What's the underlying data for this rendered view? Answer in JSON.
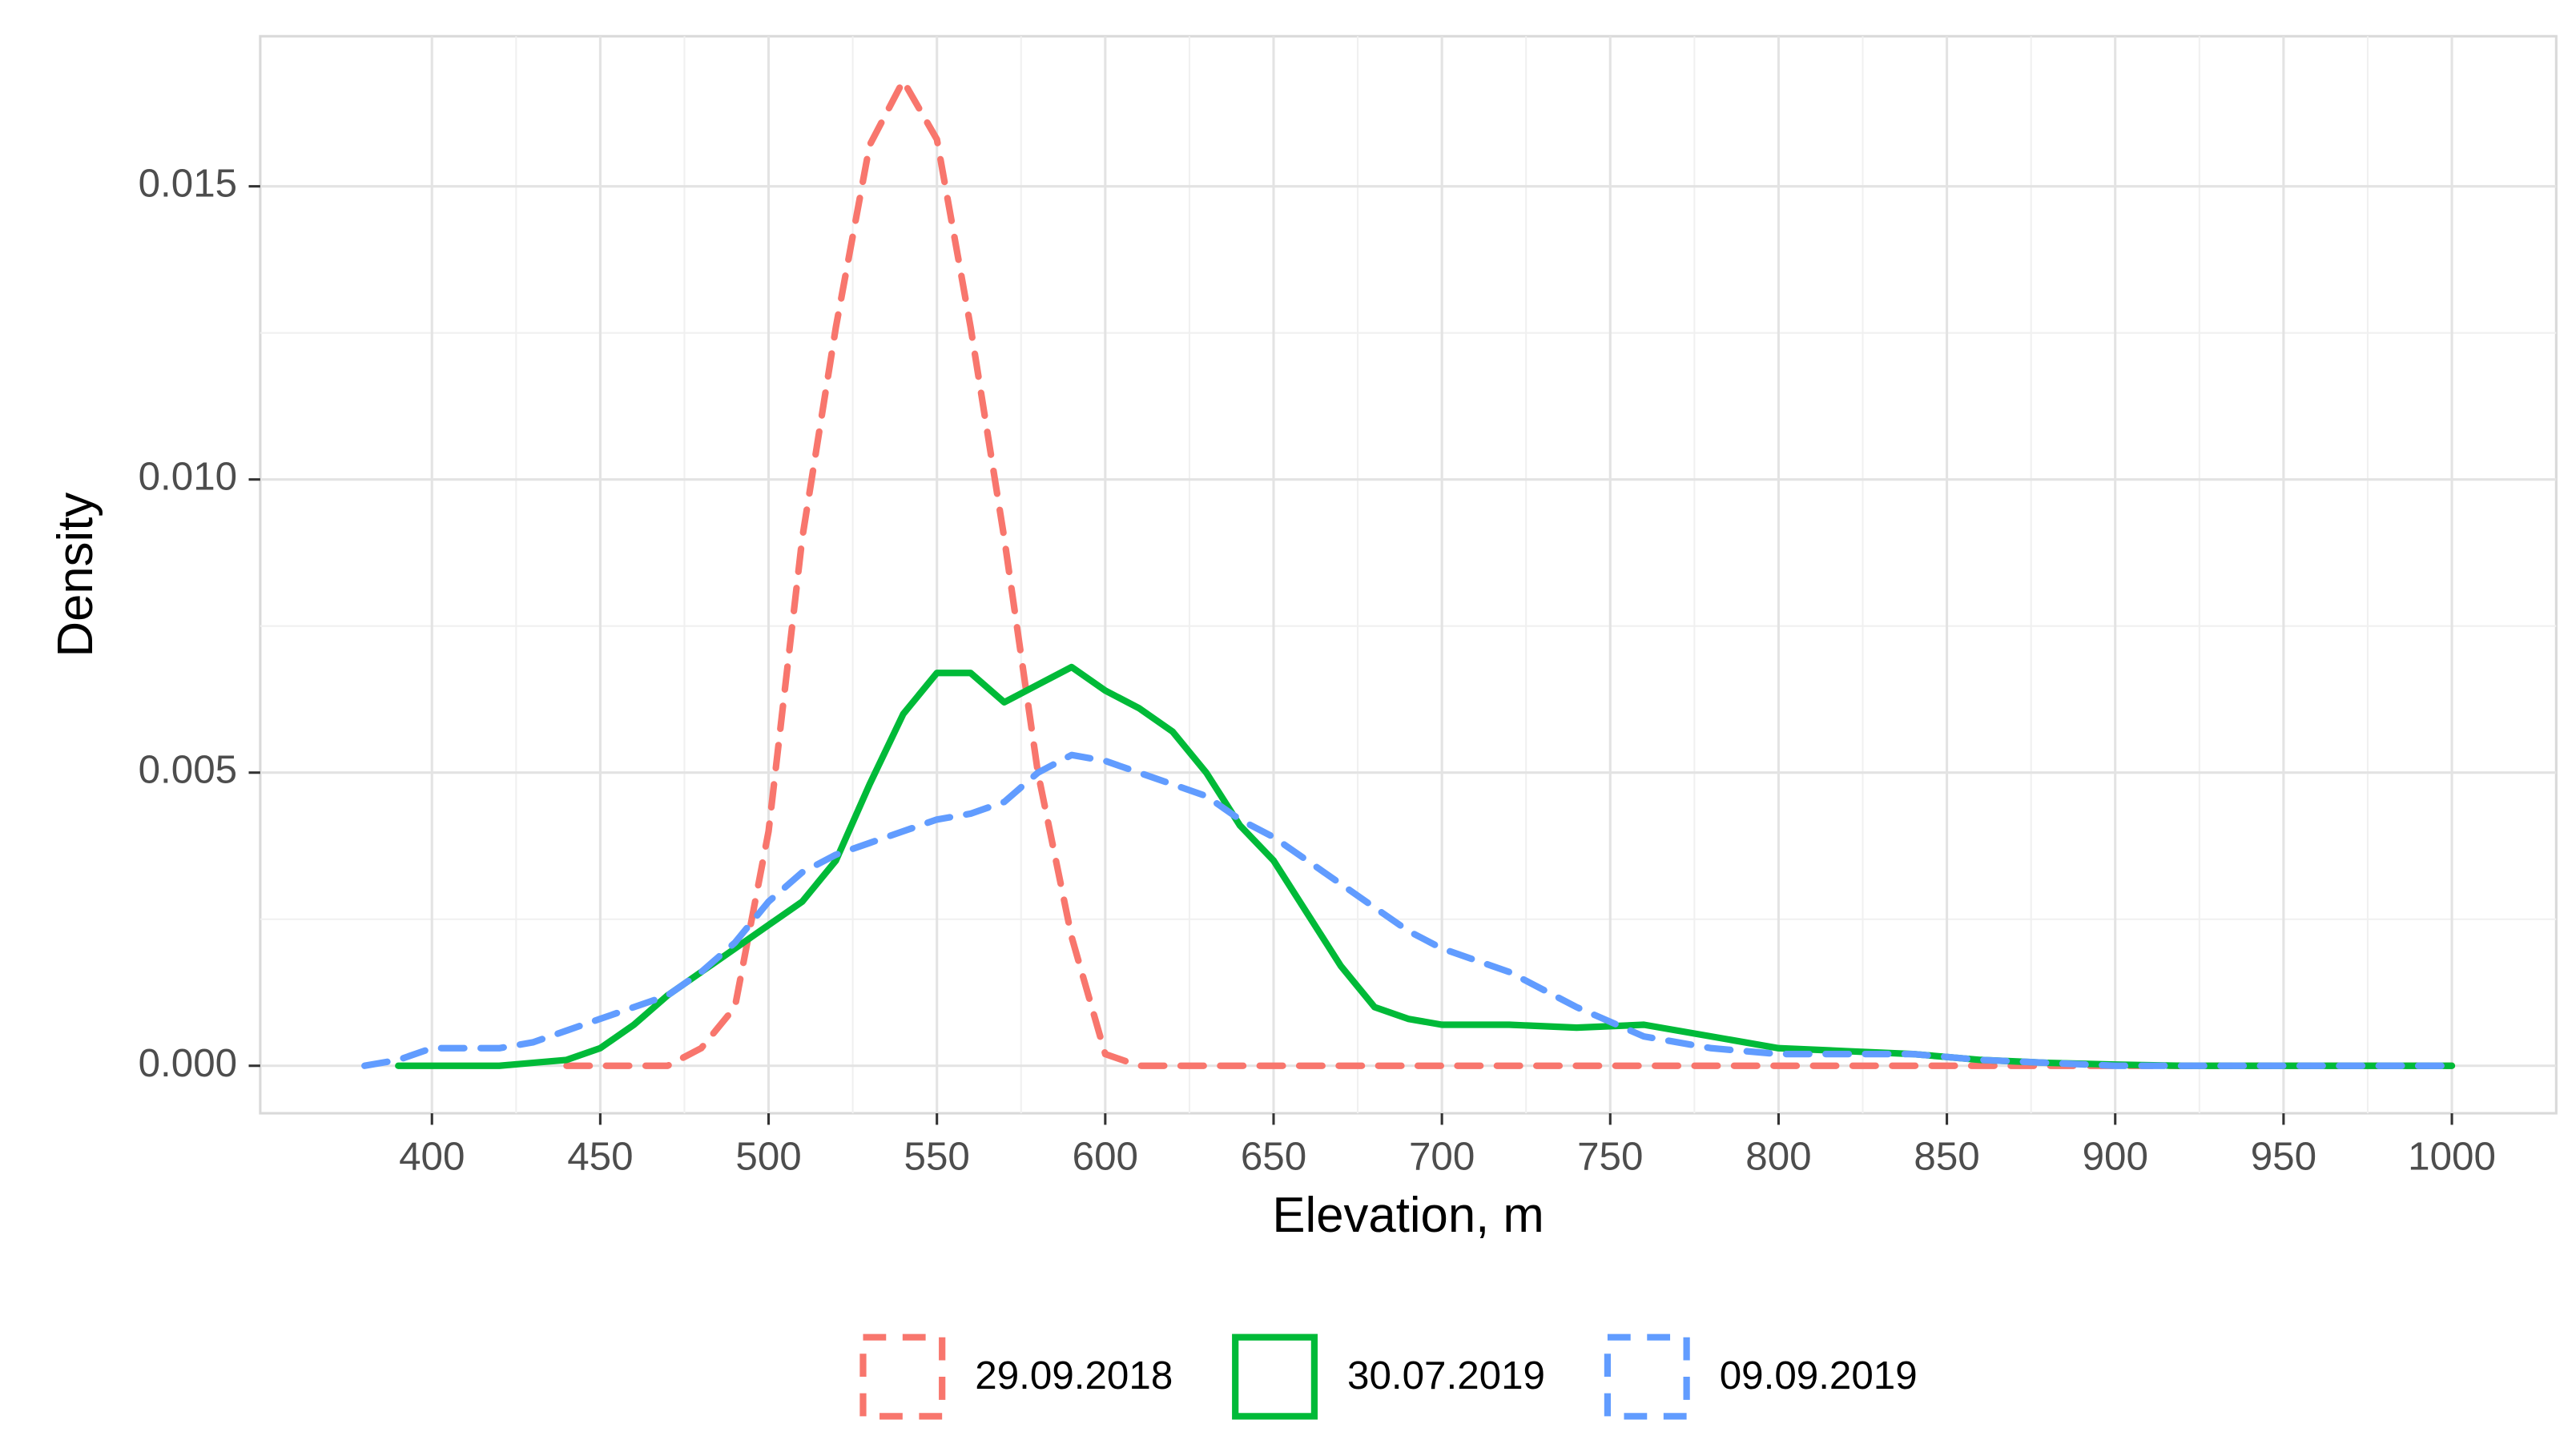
{
  "chart_data": {
    "type": "line",
    "xlabel": "Elevation, m",
    "ylabel": "Density",
    "grid": true,
    "legend": "bottom",
    "xlim": [
      349,
      1031
    ],
    "ylim": [
      -0.00081,
      0.01756
    ],
    "xticks": [
      400,
      450,
      500,
      550,
      600,
      650,
      700,
      750,
      800,
      850,
      900,
      950,
      1000
    ],
    "yticks": [
      {
        "value": 0,
        "label": "0.000"
      },
      {
        "value": 0.005,
        "label": "0.005"
      },
      {
        "value": 0.01,
        "label": "0.010"
      },
      {
        "value": 0.015,
        "label": "0.015"
      }
    ],
    "x": [
      380,
      390,
      400,
      410,
      420,
      430,
      440,
      450,
      460,
      470,
      480,
      490,
      500,
      510,
      520,
      530,
      540,
      550,
      560,
      570,
      580,
      590,
      600,
      610,
      620,
      630,
      640,
      650,
      660,
      670,
      680,
      690,
      700,
      720,
      740,
      760,
      780,
      800,
      820,
      840,
      860,
      880,
      900,
      920,
      940,
      960,
      980,
      1000
    ],
    "series": [
      {
        "name": "29.09.2018",
        "color": "#f8766d",
        "linestyle": "dashed",
        "values": [
          null,
          null,
          null,
          null,
          null,
          null,
          0,
          0,
          0,
          0,
          0.0003,
          0.001,
          0.004,
          0.009,
          0.0126,
          0.0157,
          0.0168,
          0.0158,
          0.0126,
          0.009,
          0.005,
          0.0022,
          0.0002,
          0,
          0,
          0,
          0,
          0,
          0,
          0,
          0,
          0,
          0,
          0,
          0,
          0,
          0,
          0,
          0,
          0,
          0,
          0,
          0,
          0,
          0,
          0,
          0,
          0
        ]
      },
      {
        "name": "30.07.2019",
        "color": "#00ba38",
        "linestyle": "solid",
        "values": [
          null,
          0,
          0,
          0,
          0,
          5e-05,
          0.0001,
          0.0003,
          0.0007,
          0.0012,
          0.0016,
          0.002,
          0.0024,
          0.0028,
          0.0035,
          0.0048,
          0.006,
          0.0067,
          0.0067,
          0.0062,
          0.0065,
          0.0068,
          0.0064,
          0.0061,
          0.0057,
          0.005,
          0.0041,
          0.0035,
          0.0026,
          0.0017,
          0.001,
          0.0008,
          0.0007,
          0.0007,
          0.00065,
          0.0007,
          0.0005,
          0.0003,
          0.00025,
          0.0002,
          0.0001,
          5e-05,
          2e-05,
          0,
          0,
          0,
          0,
          0
        ]
      },
      {
        "name": "09.09.2019",
        "color": "#619cff",
        "linestyle": "dashed",
        "values": [
          0,
          0.0001,
          0.0003,
          0.0003,
          0.0003,
          0.0004,
          0.0006,
          0.0008,
          0.001,
          0.0012,
          0.0016,
          0.0021,
          0.0028,
          0.0033,
          0.0036,
          0.0038,
          0.004,
          0.0042,
          0.0043,
          0.0045,
          0.005,
          0.0053,
          0.0052,
          0.005,
          0.0048,
          0.0046,
          0.0042,
          0.0039,
          0.0035,
          0.0031,
          0.0027,
          0.0023,
          0.002,
          0.0016,
          0.001,
          0.0005,
          0.0003,
          0.0002,
          0.0002,
          0.0002,
          0.0001,
          5e-05,
          0,
          0,
          0,
          0,
          0,
          0
        ]
      }
    ]
  }
}
